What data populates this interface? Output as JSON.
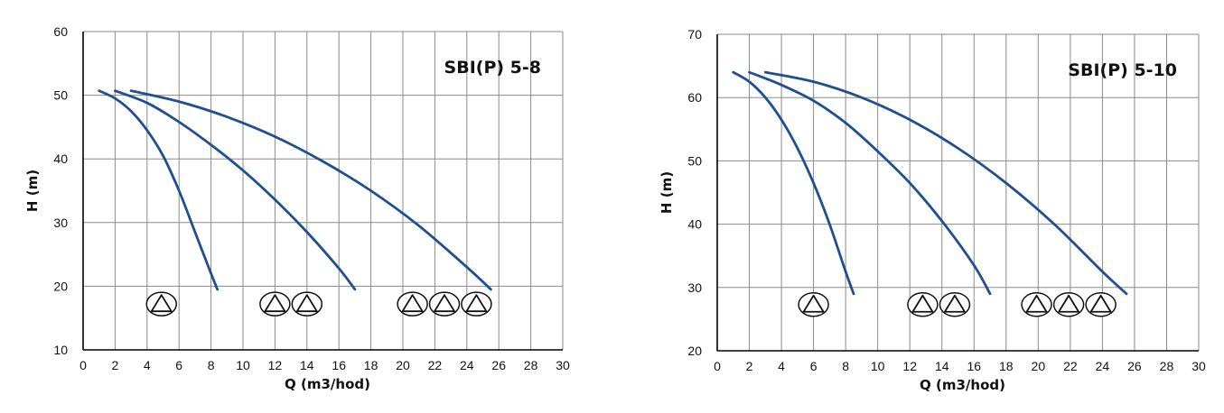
{
  "chart_data": [
    {
      "type": "line",
      "title": "SBI(P) 5-8",
      "xlabel": "Q (m3/hod)",
      "ylabel": "H (m)",
      "xlim": [
        0,
        30
      ],
      "ylim": [
        10,
        60
      ],
      "x_ticks": [
        0,
        2,
        4,
        6,
        8,
        10,
        12,
        14,
        16,
        18,
        20,
        22,
        24,
        26,
        28,
        30
      ],
      "y_ticks": [
        10,
        20,
        30,
        40,
        50,
        60
      ],
      "grid": true,
      "legend": "none",
      "series": [
        {
          "points": [
            [
              1,
              50.7
            ],
            [
              2,
              49.5
            ],
            [
              3,
              47.5
            ],
            [
              4,
              44.5
            ],
            [
              5,
              40.5
            ],
            [
              6,
              35
            ],
            [
              7,
              28.5
            ],
            [
              8,
              22
            ],
            [
              8.4,
              19.5
            ]
          ]
        },
        {
          "points": [
            [
              2,
              50.7
            ],
            [
              4,
              48.8
            ],
            [
              6,
              45.8
            ],
            [
              8,
              42.2
            ],
            [
              10,
              38.2
            ],
            [
              12,
              33.6
            ],
            [
              14,
              28.5
            ],
            [
              16,
              22.8
            ],
            [
              17,
              19.5
            ]
          ]
        },
        {
          "points": [
            [
              3,
              50.7
            ],
            [
              6,
              49
            ],
            [
              9,
              46.6
            ],
            [
              12,
              43.5
            ],
            [
              15,
              39.6
            ],
            [
              18,
              35
            ],
            [
              21,
              29.5
            ],
            [
              24,
              23
            ],
            [
              25.5,
              19.5
            ]
          ]
        }
      ],
      "pump_symbols": [
        {
          "x": 4.9,
          "y": 17.2
        },
        {
          "x": 12.0,
          "y": 17.2
        },
        {
          "x": 14.0,
          "y": 17.2
        },
        {
          "x": 20.6,
          "y": 17.2
        },
        {
          "x": 22.6,
          "y": 17.2
        },
        {
          "x": 24.6,
          "y": 17.2
        }
      ],
      "colors": {
        "curve": "#1f4f8f",
        "grid": "#8a8a8a"
      }
    },
    {
      "type": "line",
      "title": "SBI(P) 5-10",
      "xlabel": "Q (m3/hod)",
      "ylabel": "H (m)",
      "xlim": [
        0,
        30
      ],
      "ylim": [
        20,
        70
      ],
      "x_ticks": [
        0,
        2,
        4,
        6,
        8,
        10,
        12,
        14,
        16,
        18,
        20,
        22,
        24,
        26,
        28,
        30
      ],
      "y_ticks": [
        20,
        30,
        40,
        50,
        60,
        70
      ],
      "grid": true,
      "legend": "none",
      "series": [
        {
          "points": [
            [
              1,
              64
            ],
            [
              2,
              62.5
            ],
            [
              3,
              60
            ],
            [
              4,
              56.5
            ],
            [
              5,
              52
            ],
            [
              6,
              46.5
            ],
            [
              7,
              40
            ],
            [
              8,
              32.5
            ],
            [
              8.5,
              29
            ]
          ]
        },
        {
          "points": [
            [
              2,
              64
            ],
            [
              4,
              62
            ],
            [
              6,
              59.5
            ],
            [
              8,
              56
            ],
            [
              10,
              51.5
            ],
            [
              12,
              46.5
            ],
            [
              14,
              40.5
            ],
            [
              16,
              33.5
            ],
            [
              17,
              29
            ]
          ]
        },
        {
          "points": [
            [
              3,
              64
            ],
            [
              6,
              62.5
            ],
            [
              9,
              60
            ],
            [
              12,
              56.5
            ],
            [
              15,
              52
            ],
            [
              18,
              46.5
            ],
            [
              21,
              40
            ],
            [
              24,
              32.5
            ],
            [
              25.5,
              29
            ]
          ]
        }
      ],
      "pump_symbols": [
        {
          "x": 6.0,
          "y": 27.3
        },
        {
          "x": 12.8,
          "y": 27.3
        },
        {
          "x": 14.8,
          "y": 27.3
        },
        {
          "x": 19.9,
          "y": 27.3
        },
        {
          "x": 21.9,
          "y": 27.3
        },
        {
          "x": 23.9,
          "y": 27.3
        }
      ],
      "colors": {
        "curve": "#1f4f8f",
        "grid": "#8a8a8a"
      }
    }
  ]
}
